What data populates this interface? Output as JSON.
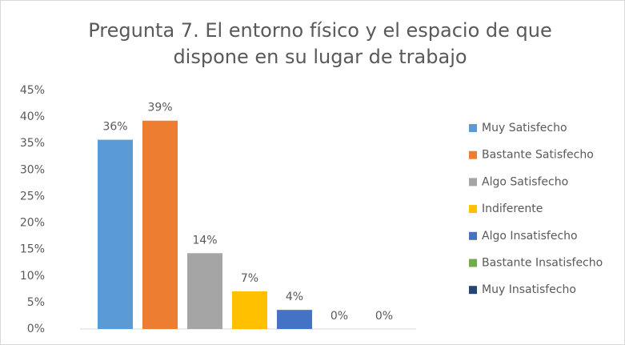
{
  "chart_data": {
    "type": "bar",
    "title": "Pregunta 7. El entorno físico y el espacio de que dispone en su lugar de trabajo",
    "series": [
      {
        "name": "Muy Satisfecho",
        "color": "#5b9bd5",
        "values": [
          35.7
        ],
        "value_labels": [
          "36%"
        ]
      },
      {
        "name": "Bastante Satisfecho",
        "color": "#ed7d31",
        "values": [
          39.3
        ],
        "value_labels": [
          "39%"
        ]
      },
      {
        "name": "Algo Satisfecho",
        "color": "#a5a5a5",
        "values": [
          14.3
        ],
        "value_labels": [
          "14%"
        ]
      },
      {
        "name": "Indiferente",
        "color": "#ffc000",
        "values": [
          7.1
        ],
        "value_labels": [
          "7%"
        ]
      },
      {
        "name": "Algo Insatisfecho",
        "color": "#4472c4",
        "values": [
          3.6
        ],
        "value_labels": [
          "4%"
        ]
      },
      {
        "name": "Bastante Insatisfecho",
        "color": "#70ad47",
        "values": [
          0
        ],
        "value_labels": [
          "0%"
        ]
      },
      {
        "name": "Muy Insatisfecho",
        "color": "#264478",
        "values": [
          0
        ],
        "value_labels": [
          "0%"
        ]
      }
    ],
    "ylim": [
      0,
      45
    ],
    "yticks": [
      {
        "value": 0,
        "label": "0%"
      },
      {
        "value": 5,
        "label": "5%"
      },
      {
        "value": 10,
        "label": "10%"
      },
      {
        "value": 15,
        "label": "15%"
      },
      {
        "value": 20,
        "label": "20%"
      },
      {
        "value": 25,
        "label": "25%"
      },
      {
        "value": 30,
        "label": "30%"
      },
      {
        "value": 35,
        "label": "35%"
      },
      {
        "value": 40,
        "label": "40%"
      },
      {
        "value": 45,
        "label": "45%"
      }
    ],
    "grid": false,
    "legend": "right"
  }
}
